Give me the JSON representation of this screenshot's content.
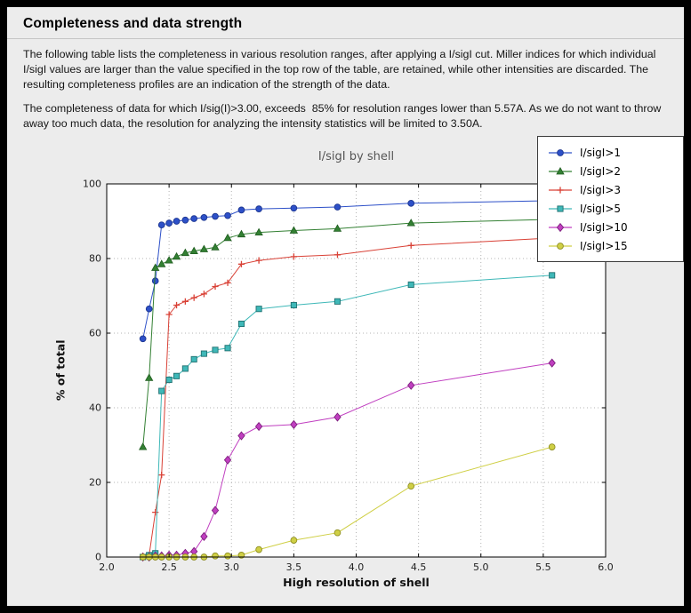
{
  "header": {
    "title": "Completeness and data strength"
  },
  "body": {
    "paragraph1": "The following table lists the completeness in various resolution ranges, after applying a I/sigI cut. Miller indices for which individual I/sigI values are larger than the value specified in the top row of the table, are retained, while other intensities are discarded. The resulting completeness profiles are an indication of the strength of the data.",
    "paragraph2": "The completeness of data for which I/sig(I)>3.00, exceeds  85% for resolution ranges lower than 5.57A. As we do not want to throw away too much data, the resolution for analyzing the intensity statistics will be limited to 3.50A."
  },
  "chart_data": {
    "type": "line",
    "title": "I/sigI by shell",
    "xlabel": "High resolution of shell",
    "ylabel": "% of total",
    "xlim": [
      2.0,
      6.0
    ],
    "ylim": [
      0,
      100
    ],
    "xticks": [
      2.0,
      2.5,
      3.0,
      3.5,
      4.0,
      4.5,
      5.0,
      5.5,
      6.0
    ],
    "xtick_labels": [
      "2.0",
      "2.5",
      "3.0",
      "3.5",
      "4.0",
      "4.5",
      "5.0",
      "5.5",
      "6.0"
    ],
    "yticks": [
      0,
      20,
      40,
      60,
      80,
      100
    ],
    "ytick_labels": [
      "0",
      "20",
      "40",
      "60",
      "80",
      "100"
    ],
    "grid": true,
    "legend_position": "top-right",
    "x": [
      2.29,
      2.34,
      2.39,
      2.44,
      2.5,
      2.56,
      2.63,
      2.7,
      2.78,
      2.87,
      2.97,
      3.08,
      3.22,
      3.5,
      3.85,
      4.44,
      5.57
    ],
    "series": [
      {
        "name": "I/sigI>1",
        "color": "#2d50c8",
        "edge": "#1d3690",
        "marker": "circle",
        "values": [
          58.5,
          66.5,
          74,
          89,
          89.5,
          90,
          90.3,
          90.7,
          91,
          91.3,
          91.5,
          93,
          93.3,
          93.5,
          93.8,
          94.8,
          95.5
        ]
      },
      {
        "name": "I/sigI>2",
        "color": "#338033",
        "edge": "#1f5c1f",
        "marker": "triangle",
        "values": [
          29.5,
          48,
          77.5,
          78.5,
          79.5,
          80.5,
          81.5,
          82,
          82.5,
          83,
          85.5,
          86.5,
          87,
          87.5,
          88,
          89.5,
          90.5
        ]
      },
      {
        "name": "I/sigI>3",
        "color": "#d94136",
        "edge": "#a32c24",
        "marker": "plus",
        "values": [
          0.3,
          0.5,
          12,
          22,
          65,
          67.5,
          68.5,
          69.5,
          70.5,
          72.5,
          73.5,
          78.5,
          79.5,
          80.5,
          81,
          83.5,
          85.5
        ]
      },
      {
        "name": "I/sigI>5",
        "color": "#3fb8b8",
        "edge": "#1f7070",
        "marker": "square",
        "values": [
          0,
          0.5,
          1,
          44.5,
          47.5,
          48.5,
          50.5,
          53,
          54.5,
          55.5,
          56,
          62.5,
          66.5,
          67.5,
          68.5,
          73,
          75.5
        ]
      },
      {
        "name": "I/sigI>10",
        "color": "#c03fc0",
        "edge": "#7d1f7d",
        "marker": "diamond",
        "values": [
          0,
          0,
          0.3,
          0.3,
          0.5,
          0.5,
          1,
          1.5,
          5.5,
          12.5,
          26,
          32.5,
          35,
          35.5,
          37.5,
          46,
          52
        ]
      },
      {
        "name": "I/sigI>15",
        "color": "#cfcf45",
        "edge": "#8f8f22",
        "marker": "circle",
        "values": [
          0,
          0,
          0,
          0,
          0,
          0,
          0,
          0,
          0,
          0.3,
          0.3,
          0.5,
          2,
          4.5,
          6.5,
          19,
          29.5
        ]
      }
    ]
  }
}
